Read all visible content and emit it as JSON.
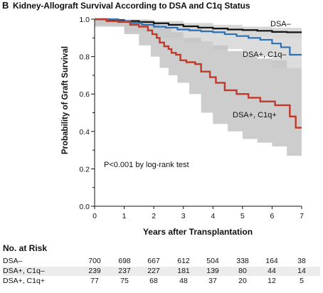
{
  "panel_letter": "B",
  "title": "Kidney-Allograft Survival According to DSA and C1q Status",
  "chart_data": {
    "type": "line",
    "title": "Kidney-Allograft Survival According to DSA and C1q Status",
    "xlabel": "Years after Transplantation",
    "ylabel": "Probability of Graft Survival",
    "xlim": [
      0,
      7
    ],
    "ylim": [
      0,
      1.0
    ],
    "x_ticks": [
      "0",
      "1",
      "2",
      "3",
      "4",
      "5",
      "6",
      "7"
    ],
    "y_ticks": [
      "0.0",
      "0.2",
      "0.4",
      "0.6",
      "0.8",
      "1.0"
    ],
    "grid": false,
    "annotation": "P<0.001 by log-rank test",
    "series": [
      {
        "name": "DSA–",
        "color": "#111111",
        "step_points": [
          [
            0,
            1.0
          ],
          [
            0.5,
            0.995
          ],
          [
            1.0,
            0.99
          ],
          [
            1.5,
            0.985
          ],
          [
            2.0,
            0.978
          ],
          [
            2.5,
            0.97
          ],
          [
            3.0,
            0.962
          ],
          [
            3.5,
            0.955
          ],
          [
            4.0,
            0.95
          ],
          [
            4.5,
            0.945
          ],
          [
            5.0,
            0.942
          ],
          [
            5.5,
            0.938
          ],
          [
            6.0,
            0.932
          ],
          [
            6.5,
            0.93
          ],
          [
            7.0,
            0.93
          ]
        ],
        "ci_upper": [
          [
            0,
            1.0
          ],
          [
            1,
            0.998
          ],
          [
            2,
            0.99
          ],
          [
            3,
            0.975
          ],
          [
            4,
            0.965
          ],
          [
            5,
            0.96
          ],
          [
            6,
            0.955
          ],
          [
            7,
            0.955
          ]
        ],
        "ci_lower": [
          [
            0,
            1.0
          ],
          [
            1,
            0.98
          ],
          [
            2,
            0.965
          ],
          [
            3,
            0.945
          ],
          [
            4,
            0.935
          ],
          [
            5,
            0.925
          ],
          [
            6,
            0.91
          ],
          [
            7,
            0.9
          ]
        ]
      },
      {
        "name": "DSA+, C1q–",
        "color": "#2a72b5",
        "step_points": [
          [
            0,
            1.0
          ],
          [
            0.8,
            0.99
          ],
          [
            1.2,
            0.98
          ],
          [
            1.6,
            0.97
          ],
          [
            2.0,
            0.96
          ],
          [
            2.4,
            0.955
          ],
          [
            2.8,
            0.945
          ],
          [
            3.2,
            0.94
          ],
          [
            3.6,
            0.935
          ],
          [
            4.0,
            0.93
          ],
          [
            4.4,
            0.92
          ],
          [
            4.8,
            0.91
          ],
          [
            5.2,
            0.9
          ],
          [
            5.6,
            0.89
          ],
          [
            6.0,
            0.87
          ],
          [
            6.3,
            0.85
          ],
          [
            6.6,
            0.81
          ],
          [
            7.0,
            0.81
          ]
        ],
        "ci_upper": [
          [
            0,
            1.0
          ],
          [
            1,
            0.998
          ],
          [
            2,
            0.99
          ],
          [
            3,
            0.98
          ],
          [
            4,
            0.97
          ],
          [
            5,
            0.96
          ],
          [
            6,
            0.95
          ],
          [
            7,
            0.95
          ]
        ],
        "ci_lower": [
          [
            0,
            1.0
          ],
          [
            1,
            0.97
          ],
          [
            2,
            0.93
          ],
          [
            3,
            0.9
          ],
          [
            4,
            0.875
          ],
          [
            5,
            0.84
          ],
          [
            6,
            0.8
          ],
          [
            7,
            0.74
          ]
        ]
      },
      {
        "name": "DSA+, C1q+",
        "color": "#c0392b",
        "step_points": [
          [
            0,
            1.0
          ],
          [
            0.4,
            0.99
          ],
          [
            0.8,
            0.985
          ],
          [
            1.2,
            0.97
          ],
          [
            1.5,
            0.96
          ],
          [
            1.8,
            0.94
          ],
          [
            1.95,
            0.92
          ],
          [
            2.1,
            0.9
          ],
          [
            2.2,
            0.875
          ],
          [
            2.35,
            0.855
          ],
          [
            2.5,
            0.84
          ],
          [
            2.6,
            0.82
          ],
          [
            2.75,
            0.81
          ],
          [
            2.9,
            0.78
          ],
          [
            3.1,
            0.77
          ],
          [
            3.4,
            0.76
          ],
          [
            3.6,
            0.72
          ],
          [
            3.9,
            0.69
          ],
          [
            4.1,
            0.66
          ],
          [
            4.4,
            0.62
          ],
          [
            4.8,
            0.6
          ],
          [
            5.2,
            0.58
          ],
          [
            5.6,
            0.56
          ],
          [
            6.1,
            0.54
          ],
          [
            6.6,
            0.48
          ],
          [
            6.8,
            0.42
          ],
          [
            7.0,
            0.42
          ]
        ],
        "ci_upper": [
          [
            0,
            1.0
          ],
          [
            1,
            0.998
          ],
          [
            1.8,
            0.985
          ],
          [
            2.2,
            0.96
          ],
          [
            2.6,
            0.93
          ],
          [
            3,
            0.9
          ],
          [
            3.6,
            0.88
          ],
          [
            4,
            0.86
          ],
          [
            4.5,
            0.83
          ],
          [
            5,
            0.8
          ],
          [
            5.5,
            0.79
          ],
          [
            6,
            0.78
          ],
          [
            6.5,
            0.74
          ],
          [
            7,
            0.7
          ]
        ],
        "ci_lower": [
          [
            0,
            1.0
          ],
          [
            1,
            0.96
          ],
          [
            1.5,
            0.92
          ],
          [
            1.9,
            0.86
          ],
          [
            2.2,
            0.8
          ],
          [
            2.5,
            0.74
          ],
          [
            2.8,
            0.7
          ],
          [
            3.2,
            0.66
          ],
          [
            3.6,
            0.6
          ],
          [
            4,
            0.5
          ],
          [
            4.5,
            0.44
          ],
          [
            5,
            0.4
          ],
          [
            5.5,
            0.36
          ],
          [
            6,
            0.34
          ],
          [
            6.5,
            0.32
          ],
          [
            7,
            0.27
          ]
        ]
      }
    ]
  },
  "series_labels": {
    "dsa_neg": "DSA–",
    "dsa_pos_c1q_neg": "DSA+, C1q–",
    "dsa_pos_c1q_pos": "DSA+, C1q+"
  },
  "risk_table": {
    "title": "No. at Risk",
    "rows": [
      {
        "label": "DSA–",
        "values": [
          "700",
          "698",
          "667",
          "612",
          "504",
          "338",
          "164",
          "38"
        ]
      },
      {
        "label": "DSA+, C1q–",
        "values": [
          "239",
          "237",
          "227",
          "181",
          "139",
          "80",
          "44",
          "14"
        ]
      },
      {
        "label": "DSA+, C1q+",
        "values": [
          "77",
          "75",
          "68",
          "48",
          "37",
          "20",
          "12",
          "5"
        ]
      }
    ]
  }
}
